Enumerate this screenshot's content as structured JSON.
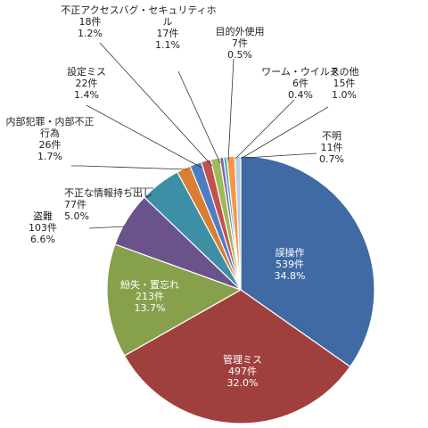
{
  "chart_data": {
    "type": "pie",
    "title": "",
    "categories": [
      "誤操作",
      "管理ミス",
      "紛失・置忘れ",
      "盗難",
      "不正な情報持ち出し",
      "内部犯罪・内部不正行為",
      "設定ミス",
      "不正アクセス",
      "バグ・セキュリティホール",
      "目的外使用",
      "ワーム・ウイルス",
      "その他",
      "不明"
    ],
    "values": [
      539,
      497,
      213,
      103,
      77,
      26,
      22,
      18,
      17,
      7,
      6,
      15,
      11
    ],
    "counts": [
      "539件",
      "497件",
      "213件",
      "103件",
      "77件",
      "26件",
      "22件",
      "18件",
      "17件",
      "7件",
      "6件",
      "15件",
      "11件"
    ],
    "percents": [
      "34.8%",
      "32.0%",
      "13.7%",
      "6.6%",
      "5.0%",
      "1.7%",
      "1.4%",
      "1.2%",
      "1.1%",
      "0.5%",
      "0.4%",
      "1.0%",
      "0.7%"
    ],
    "name_lines": [
      [
        "誤操作"
      ],
      [
        "管理ミス"
      ],
      [
        "紛失・置忘れ"
      ],
      [
        "盗難"
      ],
      [
        "不正な情報持ち出し"
      ],
      [
        "内部犯罪・内部不正",
        "行為"
      ],
      [
        "設定ミス"
      ],
      [
        "不正アクセス"
      ],
      [
        "バグ・セキュリティホ",
        "ル"
      ],
      [
        "目的外使用"
      ],
      [
        "ワーム・ウイルス"
      ],
      [
        "その他"
      ],
      [
        "不明"
      ]
    ],
    "colors": [
      "#3f6aa4",
      "#a0403e",
      "#87a04b",
      "#6a528a",
      "#3c8fa4",
      "#d97e33",
      "#4f7dc4",
      "#c4504d",
      "#9bbb59",
      "#8064a2",
      "#4bacc6",
      "#f79646",
      "#b8cce4"
    ],
    "start": "12 o'clock",
    "direction": "clockwise",
    "legend": "none"
  }
}
